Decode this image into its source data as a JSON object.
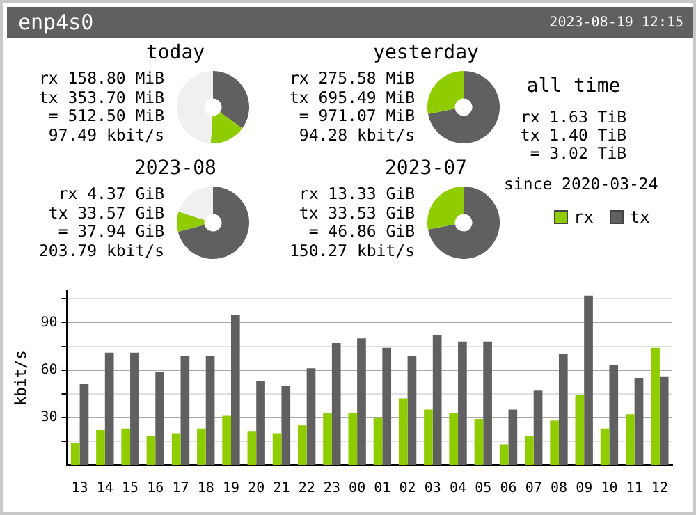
{
  "chart_data": [
    {
      "type": "other",
      "title": "enp4s0",
      "annotations": [
        "2023-08-19 12:15"
      ]
    },
    {
      "type": "donut",
      "title": "today",
      "categories": [
        null,
        null,
        null
      ],
      "values": [
        35,
        16,
        49
      ],
      "colors": [
        "#606060",
        "#8fcc00",
        "#f0f0f0"
      ],
      "annotations": [
        "rx 158.80 MiB",
        "tx 353.70 MiB",
        "= 512.50 MiB",
        "97.49 kbit/s"
      ]
    },
    {
      "type": "donut",
      "title": "yesterday",
      "categories": [
        null,
        null
      ],
      "values": [
        72,
        28
      ],
      "colors": [
        "#606060",
        "#8fcc00"
      ],
      "annotations": [
        "rx 275.58 MiB",
        "tx 695.49 MiB",
        "= 971.07 MiB",
        "94.28 kbit/s"
      ]
    },
    {
      "type": "donut",
      "title": "2023-08",
      "categories": [
        null,
        null,
        null
      ],
      "values": [
        71,
        9,
        20
      ],
      "colors": [
        "#606060",
        "#8fcc00",
        "#f0f0f0"
      ],
      "annotations": [
        "rx 4.37 GiB",
        "tx 33.57 GiB",
        "= 37.94 GiB",
        "203.79 kbit/s"
      ]
    },
    {
      "type": "donut",
      "title": "2023-07",
      "categories": [
        "tx",
        "rx"
      ],
      "values": [
        72,
        28
      ],
      "colors": [
        "#606060",
        "#8fcc00"
      ],
      "legend": "right",
      "annotations": [
        "rx 13.33 GiB",
        "tx 33.53 GiB",
        "= 46.86 GiB",
        "150.27 kbit/s"
      ]
    },
    {
      "type": "other",
      "title": "all time",
      "annotations": [
        "rx 1.63 TiB",
        "tx 1.40 TiB",
        "= 3.02 TiB",
        "since 2020-03-24"
      ]
    },
    {
      "type": "bar",
      "ylabel": "kbit/s",
      "categories": [
        "13",
        "14",
        "15",
        "16",
        "17",
        "18",
        "19",
        "20",
        "21",
        "22",
        "23",
        "00",
        "01",
        "02",
        "03",
        "04",
        "05",
        "06",
        "07",
        "08",
        "09",
        "10",
        "11",
        "12"
      ],
      "series": [
        {
          "color": "#8fcc00",
          "values": [
            14,
            22,
            23,
            18,
            20,
            23,
            31,
            21,
            20,
            25,
            33,
            33,
            30,
            42,
            35,
            33,
            29,
            13,
            18,
            28,
            44,
            23,
            32,
            74
          ]
        },
        {
          "color": "#606060",
          "values": [
            51,
            71,
            71,
            59,
            69,
            69,
            95,
            53,
            50,
            61,
            77,
            80,
            74,
            69,
            82,
            78,
            78,
            35,
            47,
            70,
            107,
            63,
            55,
            56
          ]
        }
      ],
      "ylim": [
        0,
        110
      ],
      "yticks": [
        {
          "value": 15,
          "label": null
        },
        30,
        {
          "value": 45,
          "label": null
        },
        60,
        {
          "value": 75,
          "label": null
        },
        90,
        {
          "value": 105,
          "label": null
        }
      ],
      "grid": "y"
    }
  ]
}
